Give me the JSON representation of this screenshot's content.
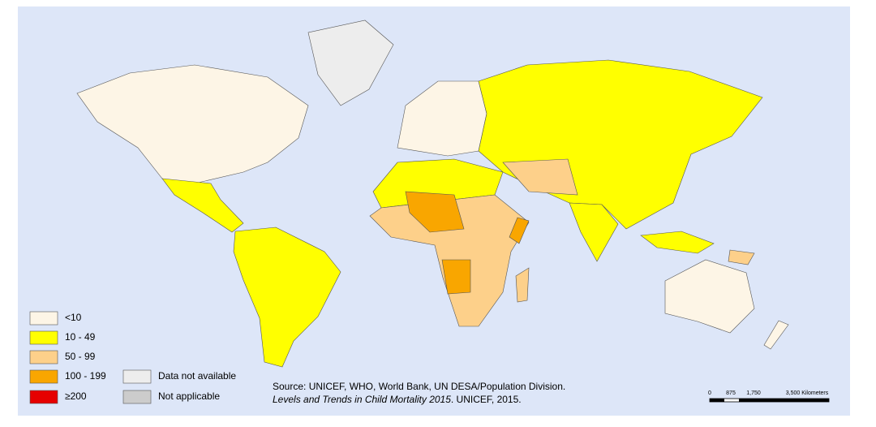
{
  "legend": {
    "items": [
      {
        "label": "<10",
        "color": "#fdf5e6"
      },
      {
        "label": "10 - 49",
        "color": "#ffff00"
      },
      {
        "label": "50 - 99",
        "color": "#fdd08a"
      },
      {
        "label": "100 - 199",
        "color": "#f9a600"
      },
      {
        "label": "≥200",
        "color": "#e60000"
      },
      {
        "label": "Data not available",
        "color": "#ededed"
      },
      {
        "label": "Not applicable",
        "color": "#cccccc"
      }
    ]
  },
  "source": {
    "line1": "Source: UNICEF, WHO, World Bank, UN DESA/Population Division.",
    "line2_italic": "Levels and Trends in Child Mortality 2015",
    "line2_rest": ". UNICEF, 2015."
  },
  "scale_bar": {
    "labels": [
      "0",
      "875",
      "1,750",
      "3,500 Kilometers"
    ]
  }
}
